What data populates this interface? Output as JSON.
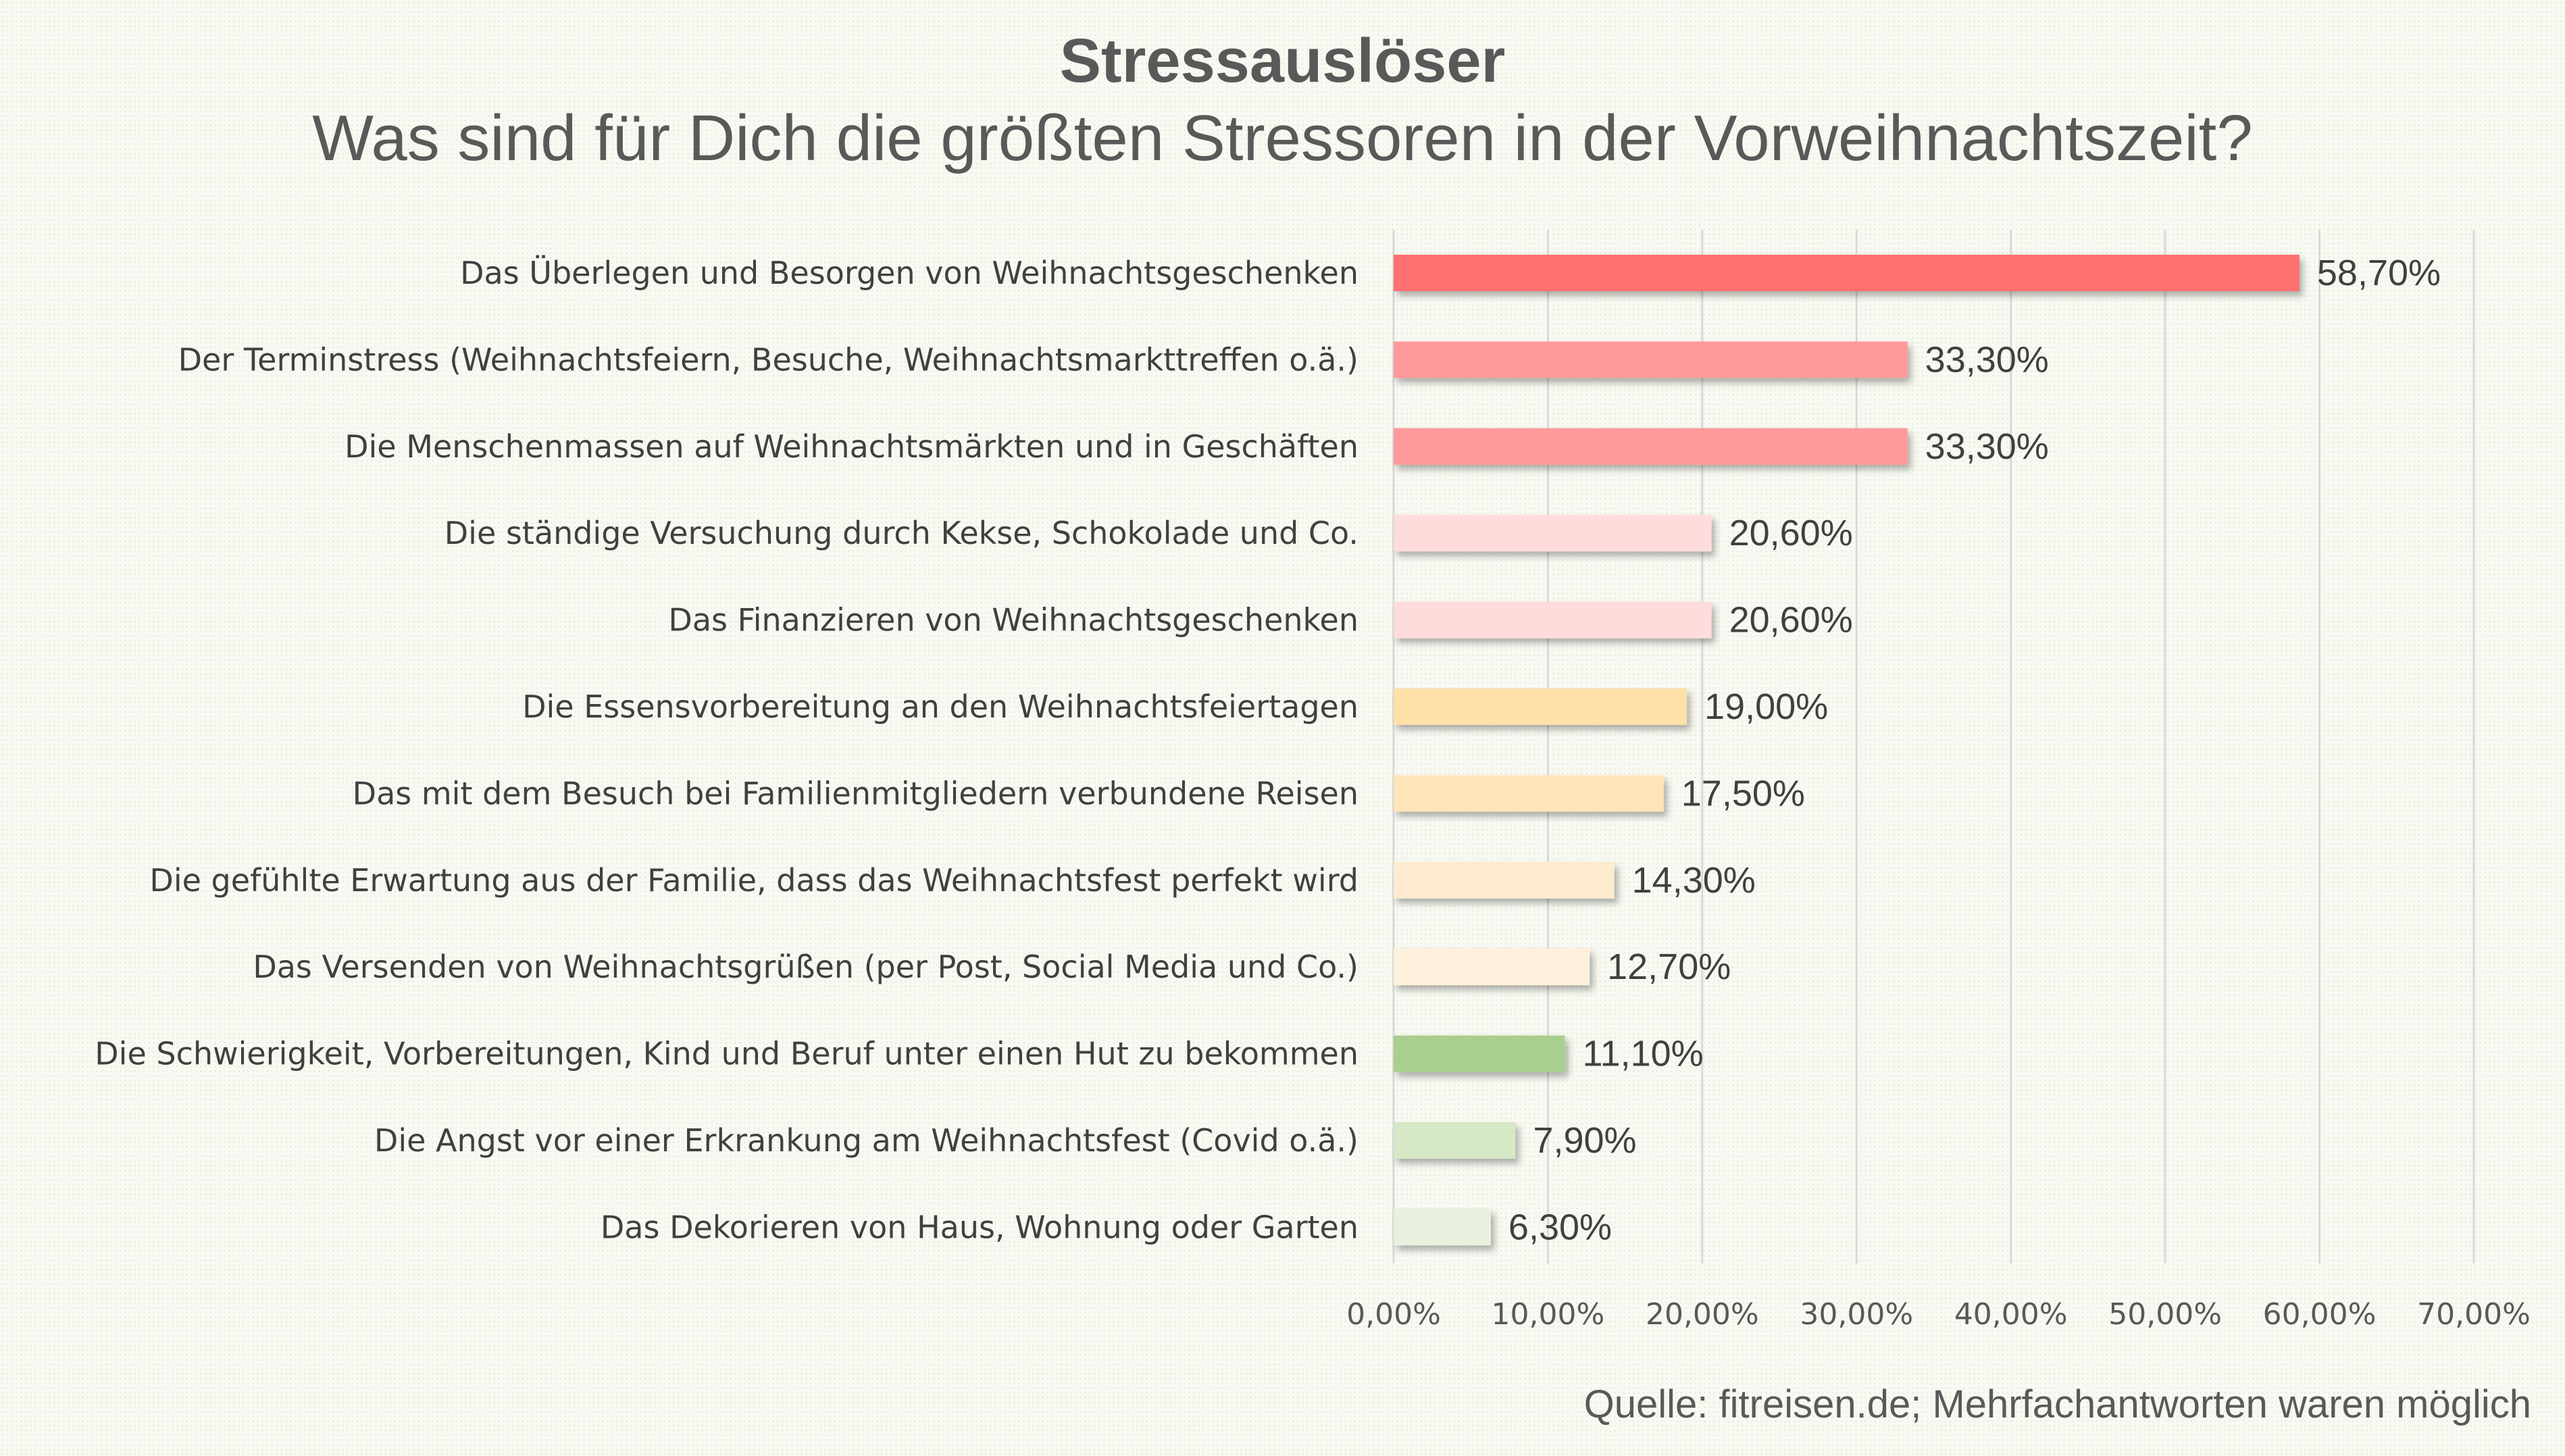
{
  "chart_data": {
    "type": "bar",
    "orientation": "horizontal",
    "title": "Stressauslöser",
    "subtitle": "Was sind für Dich die größten Stressoren in der Vorweihnachtszeit?",
    "xlabel": "",
    "ylabel": "",
    "xlim": [
      0,
      70
    ],
    "grid": true,
    "legend": "none",
    "x_ticks": [
      0,
      10,
      20,
      30,
      40,
      50,
      60,
      70
    ],
    "x_tick_labels": [
      "0,00%",
      "10,00%",
      "20,00%",
      "30,00%",
      "40,00%",
      "50,00%",
      "60,00%",
      "70,00%"
    ],
    "categories": [
      "Das Überlegen und Besorgen von Weihnachtsgeschenken",
      "Der Terminstress (Weihnachtsfeiern, Besuche, Weihnachtsmarkttreffen o.ä.)",
      "Die Menschenmassen auf Weihnachtsmärkten und in Geschäften",
      "Die ständige Versuchung durch Kekse, Schokolade und Co.",
      "Das Finanzieren von Weihnachtsgeschenken",
      "Die Essensvorbereitung an den Weihnachtsfeiertagen",
      "Das mit dem Besuch bei Familienmitgliedern verbundene Reisen",
      "Die gefühlte Erwartung aus der Familie, dass das Weihnachtsfest perfekt wird",
      "Das Versenden von Weihnachtsgrüßen (per Post, Social Media und Co.)",
      "Die Schwierigkeit, Vorbereitungen, Kind und Beruf unter einen Hut zu bekommen",
      "Die Angst vor einer Erkrankung am Weihnachtsfest (Covid o.ä.)",
      "Das Dekorieren von Haus, Wohnung oder Garten"
    ],
    "values": [
      58.7,
      33.3,
      33.3,
      20.6,
      20.6,
      19.0,
      17.5,
      14.3,
      12.7,
      11.1,
      7.9,
      6.3
    ],
    "value_labels": [
      "58,70%",
      "33,30%",
      "33,30%",
      "20,60%",
      "20,60%",
      "19,00%",
      "17,50%",
      "14,30%",
      "12,70%",
      "11,10%",
      "7,90%",
      "6,30%"
    ],
    "colors": [
      "#ff7070",
      "#ff9a9a",
      "#ff9a9a",
      "#ffdcdc",
      "#ffdcdc",
      "#ffe0a8",
      "#ffe4b8",
      "#ffecd0",
      "#fff0dc",
      "#a8cf8e",
      "#d6e8c6",
      "#e8f0de"
    ],
    "source": "Quelle: fitreisen.de; Mehrfachantworten waren möglich"
  }
}
